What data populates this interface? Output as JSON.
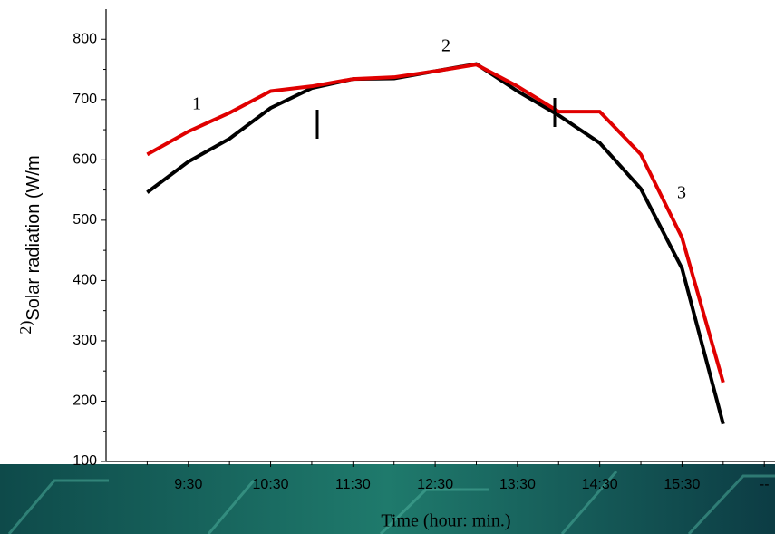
{
  "chart_data": {
    "type": "line",
    "x_label": "Time (hour: min.)",
    "y_label": "Solar radiation (W/m",
    "y_label_prefix": "2)",
    "x": [
      9,
      9.5,
      10,
      10.5,
      11,
      11.5,
      12,
      12.5,
      13,
      13.5,
      14,
      14.5,
      15,
      15.5,
      16
    ],
    "series": [
      {
        "color": "#000000",
        "values": [
          546,
          597,
          635,
          686,
          719,
          734,
          735,
          747,
          759,
          714,
          674,
          628,
          552,
          420,
          162
        ]
      },
      {
        "color": "#e00000",
        "values": [
          609,
          647,
          678,
          714,
          722,
          734,
          737,
          747,
          758,
          722,
          680,
          680,
          609,
          471,
          231
        ]
      }
    ],
    "annotations": [
      "1",
      "2",
      "3"
    ],
    "xlim": [
      8.5,
      16.63
    ],
    "xticks": [
      {
        "value": 9.5,
        "label": "9:30"
      },
      {
        "value": 10.5,
        "label": "10:30"
      },
      {
        "value": 11.5,
        "label": "11:30"
      },
      {
        "value": 12.5,
        "label": "12:30"
      },
      {
        "value": 13.5,
        "label": "13:30"
      },
      {
        "value": 14.5,
        "label": "14:30"
      },
      {
        "value": 15.5,
        "label": "15:30"
      },
      {
        "value": 16.5,
        "label": "--"
      }
    ],
    "ylim": [
      100,
      850
    ],
    "yticks": [
      100,
      200,
      300,
      400,
      500,
      600,
      700,
      800
    ]
  }
}
